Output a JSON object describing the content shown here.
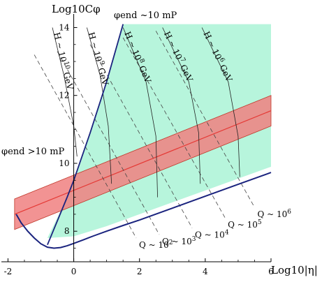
{
  "chart_data": {
    "type": "line",
    "xlabel": "Log10|η|",
    "ylabel": "Log10Cφ",
    "xlim": [
      -2.2,
      6.0
    ],
    "ylim": [
      7.1,
      14.4
    ],
    "xticks": [
      -2,
      0,
      2,
      4,
      6
    ],
    "yticks": [
      8,
      10,
      12,
      14
    ],
    "region_labels": {
      "upper_boundary": "φend ~10 mP",
      "lower_left": "φend >10 mP"
    },
    "shaded_region": {
      "color": "#b7f5dc",
      "top_y": 14.1,
      "right_x": 6.0,
      "left_boundary": [
        [
          -0.8,
          7.8
        ],
        [
          -0.2,
          9.0
        ],
        [
          0.2,
          10.0
        ],
        [
          0.6,
          11.2
        ],
        [
          1.0,
          12.4
        ],
        [
          1.5,
          14.1
        ]
      ],
      "bottom_boundary": [
        [
          -0.8,
          7.8
        ],
        [
          0.0,
          7.85
        ],
        [
          1.0,
          8.15
        ],
        [
          2.0,
          8.5
        ],
        [
          3.0,
          8.85
        ],
        [
          4.0,
          9.2
        ],
        [
          5.0,
          9.55
        ],
        [
          6.0,
          9.9
        ]
      ]
    },
    "boundary_curve": {
      "color": "#1a237e",
      "x": [
        -1.75,
        -1.6,
        -1.4,
        -1.2,
        -1.0,
        -0.8,
        -0.6,
        -0.4,
        -0.2,
        0.0,
        0.3,
        0.6,
        1.0,
        1.5,
        2.0,
        3.0,
        4.0,
        5.0,
        6.0
      ],
      "y": [
        8.5,
        8.25,
        8.0,
        7.8,
        7.63,
        7.53,
        7.5,
        7.52,
        7.57,
        7.64,
        7.75,
        7.86,
        8.0,
        8.17,
        8.33,
        8.68,
        9.03,
        9.38,
        9.73
      ]
    },
    "upper_boundary_line": {
      "color": "#1a237e",
      "x": [
        -0.8,
        -0.2,
        0.0,
        0.5,
        1.0,
        1.5
      ],
      "y": [
        7.6,
        9.0,
        9.5,
        10.9,
        12.4,
        14.1
      ]
    },
    "band": {
      "fill": "#f08080",
      "x": [
        -1.8,
        6.0
      ],
      "center": [
        8.5,
        11.55
      ],
      "lower": [
        8.05,
        11.1
      ],
      "upper": [
        8.95,
        12.0
      ],
      "center_color": "#e53935"
    },
    "H_curves": [
      {
        "label": "H ~ 10",
        "exp": "10",
        "unit": "GeV",
        "x": [
          -0.65,
          -0.3,
          0.0,
          0.1
        ],
        "y": [
          14.0,
          12.6,
          11.1,
          10.2
        ]
      },
      {
        "label": "H ~ 10",
        "exp": "9",
        "unit": "GeV",
        "x": [
          0.4,
          0.8,
          1.05,
          1.15
        ],
        "y": [
          14.0,
          12.6,
          11.1,
          9.4
        ]
      },
      {
        "label": "H ~ 10",
        "exp": "8",
        "unit": "GeV",
        "x": [
          1.5,
          2.2,
          2.5,
          2.55
        ],
        "y": [
          14.0,
          12.4,
          10.8,
          9.0
        ]
      },
      {
        "label": "H ~ 10",
        "exp": "7",
        "unit": "GeV",
        "x": [
          2.7,
          3.5,
          3.8,
          3.85
        ],
        "y": [
          14.0,
          12.4,
          10.9,
          9.4
        ]
      },
      {
        "label": "H ~ 10",
        "exp": "6",
        "unit": "GeV",
        "x": [
          3.9,
          4.7,
          5.0,
          5.05
        ],
        "y": [
          14.0,
          12.4,
          10.8,
          9.6
        ]
      }
    ],
    "Q_lines": [
      {
        "label": "Q ~ 10",
        "exp": "2",
        "x": [
          -1.2,
          1.9
        ],
        "y": [
          13.2,
          7.8
        ]
      },
      {
        "label": "Q ~ 10",
        "exp": "3",
        "x": [
          -0.5,
          2.6
        ],
        "y": [
          13.3,
          7.9
        ]
      },
      {
        "label": "Q ~ 10",
        "exp": "4",
        "x": [
          0.5,
          3.6
        ],
        "y": [
          13.5,
          8.1
        ]
      },
      {
        "label": "Q ~ 10",
        "exp": "5",
        "x": [
          1.5,
          4.6
        ],
        "y": [
          13.7,
          8.4
        ]
      },
      {
        "label": "Q ~ 10",
        "exp": "6",
        "x": [
          2.5,
          5.5
        ],
        "y": [
          13.9,
          8.7
        ]
      }
    ]
  }
}
